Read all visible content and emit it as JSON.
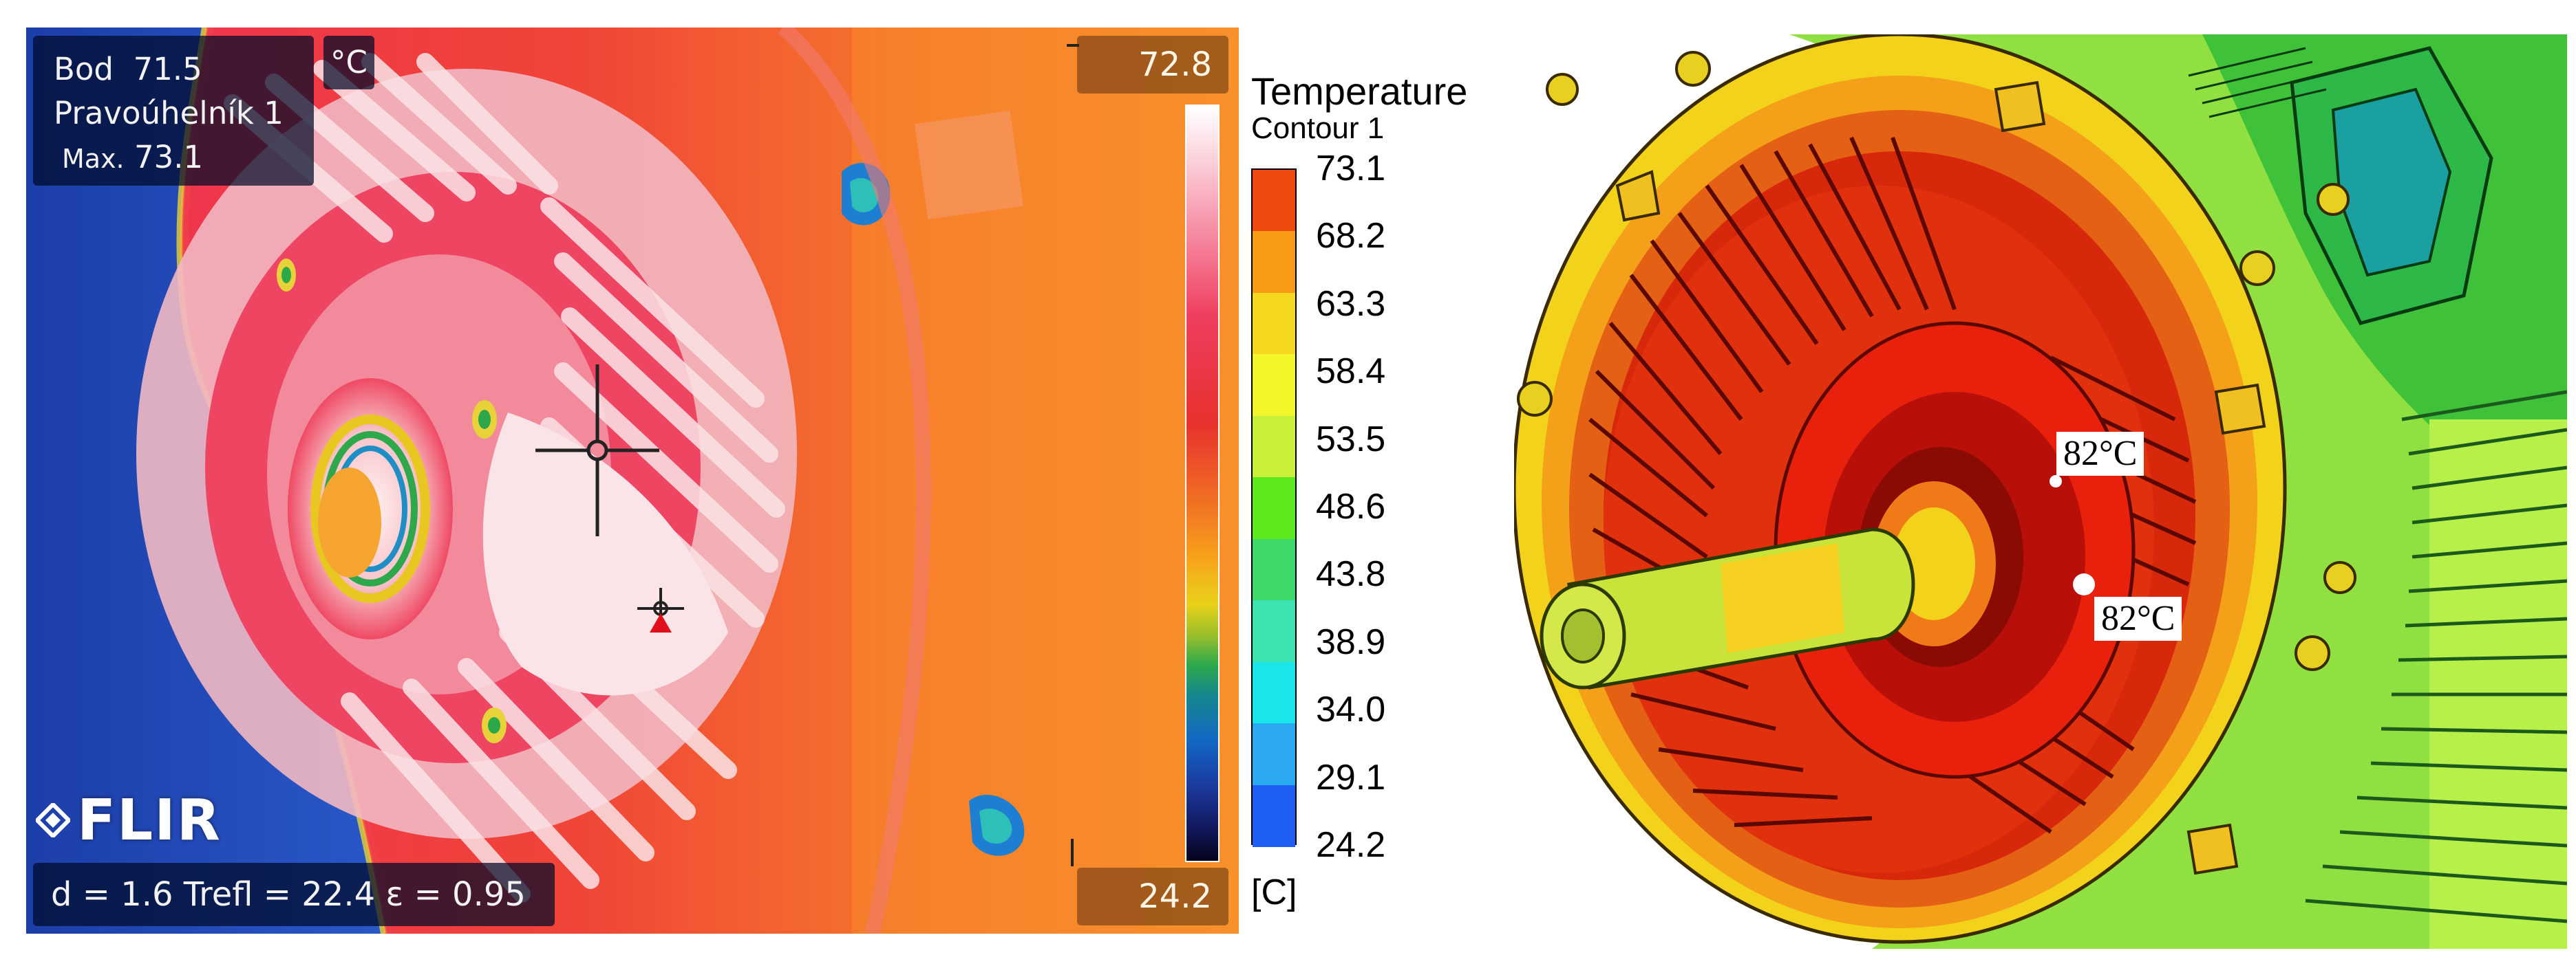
{
  "thermal_image": {
    "info": {
      "point_label": "Bod",
      "point_value": "71.5",
      "area_label": "Pravoúhelník 1",
      "max_label": "Max.",
      "max_value": "73.1"
    },
    "unit": "°C",
    "scale_max": "72.8",
    "scale_min": "24.2",
    "parameters": "d = 1.6  Trefl = 22.4  ε = 0.95",
    "brand": "FLIR"
  },
  "legend": {
    "title": "Temperature",
    "subtitle": "Contour 1",
    "unit": "[C]",
    "ticks": [
      "73.1",
      "68.2",
      "63.3",
      "58.4",
      "53.5",
      "48.6",
      "43.8",
      "38.9",
      "34.0",
      "29.1",
      "24.2"
    ],
    "band_colors": [
      "#f04a0f",
      "#f99a16",
      "#f5d820",
      "#f4f62c",
      "#c8f03a",
      "#5ce81c",
      "#3cd86a",
      "#3ce2b0",
      "#18e6ea",
      "#2aa8f0",
      "#1e5ef2"
    ]
  },
  "simulation_image": {
    "annotations": [
      "82°C",
      "82°C"
    ]
  }
}
